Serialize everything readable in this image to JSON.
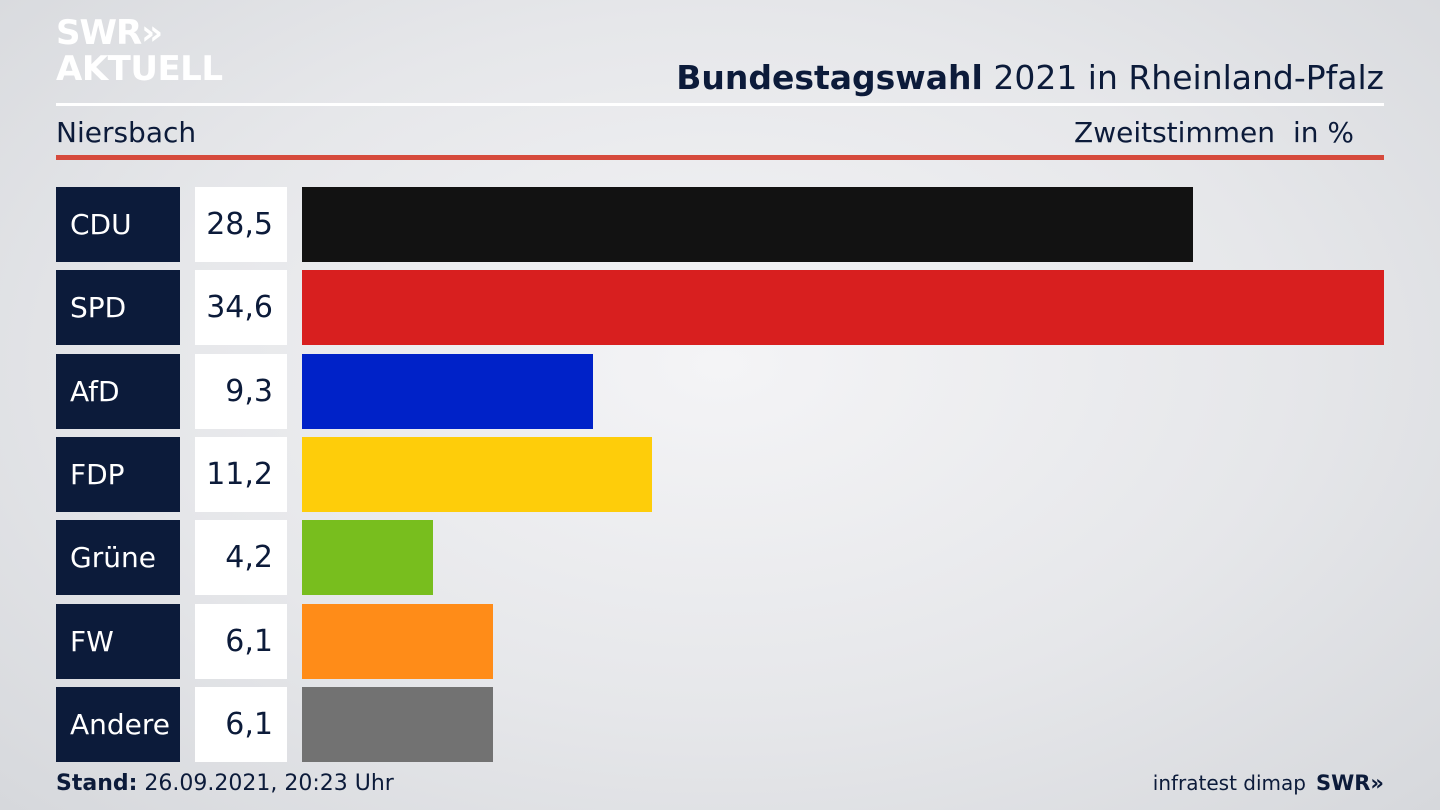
{
  "logo": {
    "line1": "SWR»",
    "line2": "AKTUELL"
  },
  "header": {
    "title_bold": "Bundestagswahl",
    "title_rest": " 2021 in Rheinland-Pfalz",
    "region": "Niersbach",
    "metric": "Zweitstimmen",
    "unit": "in %"
  },
  "chart_data": {
    "type": "bar",
    "orientation": "horizontal",
    "categories": [
      "CDU",
      "SPD",
      "AfD",
      "FDP",
      "Grüne",
      "FW",
      "Andere"
    ],
    "values": [
      28.5,
      34.6,
      9.3,
      11.2,
      4.2,
      6.1,
      6.1
    ],
    "value_labels": [
      "28,5",
      "34,6",
      "9,3",
      "11,2",
      "4,2",
      "6,1",
      "6,1"
    ],
    "colors": [
      "#121212",
      "#d81f1f",
      "#0022c8",
      "#fecd0a",
      "#78be1e",
      "#ff8c18",
      "#727272"
    ],
    "xlim": [
      0,
      34.6
    ]
  },
  "footer": {
    "stand_label": "Stand:",
    "stand_value": " 26.09.2021, 20:23 Uhr",
    "source": "infratest dimap",
    "brand": "SWR»"
  }
}
